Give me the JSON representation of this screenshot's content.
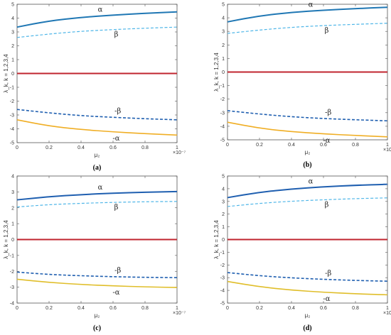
{
  "figure": {
    "x_exponent": "×10⁻⁷",
    "xlabel": "μ₂",
    "ylabel": "λ_k, k = 1,2,3,4"
  },
  "chart_data": [
    {
      "type": "line",
      "caption": "(a)",
      "xlim": [
        0,
        1
      ],
      "ylim": [
        -5,
        5
      ],
      "xticks": [
        "0",
        "0.2",
        "0.4",
        "0.6",
        "0.8",
        "1"
      ],
      "yticks": [
        "-5",
        "-4",
        "-3",
        "-2",
        "-1",
        "0",
        "1",
        "2",
        "3",
        "4",
        "5"
      ],
      "series": [
        {
          "name": "α",
          "color": "#1f77b4",
          "style": "solid",
          "width": 2.0,
          "x": [
            0,
            0.2,
            0.4,
            0.6,
            0.8,
            1.0
          ],
          "y": [
            3.35,
            3.8,
            4.05,
            4.22,
            4.35,
            4.45
          ]
        },
        {
          "name": "β",
          "color": "#4fb6e8",
          "style": "dashed",
          "width": 1.2,
          "x": [
            0,
            0.2,
            0.4,
            0.6,
            0.8,
            1.0
          ],
          "y": [
            2.6,
            2.85,
            3.05,
            3.17,
            3.27,
            3.35
          ]
        },
        {
          "name": "",
          "color": "#c0252f",
          "style": "solid",
          "width": 2.0,
          "x": [
            0,
            1.0
          ],
          "y": [
            0,
            0
          ]
        },
        {
          "name": "-β",
          "color": "#1f5fb0",
          "style": "dashed",
          "width": 1.6,
          "x": [
            0,
            0.2,
            0.4,
            0.6,
            0.8,
            1.0
          ],
          "y": [
            -2.6,
            -2.85,
            -3.05,
            -3.17,
            -3.27,
            -3.35
          ]
        },
        {
          "name": "-α",
          "color": "#f0ae24",
          "style": "solid",
          "width": 1.6,
          "x": [
            0,
            0.2,
            0.4,
            0.6,
            0.8,
            1.0
          ],
          "y": [
            -3.35,
            -3.8,
            -4.05,
            -4.22,
            -4.35,
            -4.45
          ]
        }
      ]
    },
    {
      "type": "line",
      "caption": "(b)",
      "xlim": [
        0,
        1
      ],
      "ylim": [
        -5,
        5
      ],
      "xticks": [
        "0",
        "0.2",
        "0.4",
        "0.6",
        "0.8",
        "1"
      ],
      "yticks": [
        "-5",
        "-4",
        "-3",
        "-2",
        "-1",
        "0",
        "1",
        "2",
        "3",
        "4",
        "5"
      ],
      "series": [
        {
          "name": "α",
          "color": "#1f77b4",
          "style": "solid",
          "width": 2.0,
          "x": [
            0,
            0.2,
            0.4,
            0.6,
            0.8,
            1.0
          ],
          "y": [
            3.7,
            4.15,
            4.4,
            4.56,
            4.68,
            4.78
          ]
        },
        {
          "name": "β",
          "color": "#4fb6e8",
          "style": "dashed",
          "width": 1.2,
          "x": [
            0,
            0.2,
            0.4,
            0.6,
            0.8,
            1.0
          ],
          "y": [
            2.85,
            3.1,
            3.3,
            3.43,
            3.52,
            3.6
          ]
        },
        {
          "name": "",
          "color": "#c0252f",
          "style": "solid",
          "width": 2.0,
          "x": [
            0,
            1.0
          ],
          "y": [
            0,
            0
          ]
        },
        {
          "name": "-β",
          "color": "#1f5fb0",
          "style": "dashed",
          "width": 1.6,
          "x": [
            0,
            0.2,
            0.4,
            0.6,
            0.8,
            1.0
          ],
          "y": [
            -2.85,
            -3.1,
            -3.3,
            -3.43,
            -3.52,
            -3.6
          ]
        },
        {
          "name": "-α",
          "color": "#f0ae24",
          "style": "solid",
          "width": 1.6,
          "x": [
            0,
            0.2,
            0.4,
            0.6,
            0.8,
            1.0
          ],
          "y": [
            -3.7,
            -4.15,
            -4.4,
            -4.56,
            -4.68,
            -4.78
          ]
        }
      ]
    },
    {
      "type": "line",
      "caption": "(c)",
      "xlim": [
        0,
        1
      ],
      "ylim": [
        -4,
        4
      ],
      "xticks": [
        "0",
        "0.2",
        "0.4",
        "0.6",
        "0.8",
        "1"
      ],
      "yticks": [
        "-4",
        "-3",
        "-2",
        "-1",
        "0",
        "1",
        "2",
        "3",
        "4"
      ],
      "series": [
        {
          "name": "α",
          "color": "#1f5fb0",
          "style": "solid",
          "width": 2.0,
          "x": [
            0,
            0.2,
            0.4,
            0.6,
            0.8,
            1.0
          ],
          "y": [
            2.5,
            2.7,
            2.83,
            2.92,
            2.98,
            3.02
          ]
        },
        {
          "name": "β",
          "color": "#4fb6e8",
          "style": "dashed",
          "width": 1.2,
          "x": [
            0,
            0.2,
            0.4,
            0.6,
            0.8,
            1.0
          ],
          "y": [
            2.05,
            2.2,
            2.28,
            2.34,
            2.38,
            2.4
          ]
        },
        {
          "name": "",
          "color": "#c0252f",
          "style": "solid",
          "width": 2.0,
          "x": [
            0,
            1.0
          ],
          "y": [
            0,
            0
          ]
        },
        {
          "name": "-β",
          "color": "#1f5fb0",
          "style": "dashed",
          "width": 1.6,
          "x": [
            0,
            0.2,
            0.4,
            0.6,
            0.8,
            1.0
          ],
          "y": [
            -2.05,
            -2.2,
            -2.28,
            -2.34,
            -2.38,
            -2.4
          ]
        },
        {
          "name": "-α",
          "color": "#e0be2a",
          "style": "solid",
          "width": 1.6,
          "x": [
            0,
            0.2,
            0.4,
            0.6,
            0.8,
            1.0
          ],
          "y": [
            -2.5,
            -2.7,
            -2.83,
            -2.92,
            -2.98,
            -3.02
          ]
        }
      ]
    },
    {
      "type": "line",
      "caption": "(d)",
      "xlim": [
        0,
        1
      ],
      "ylim": [
        -5,
        5
      ],
      "xticks": [
        "0",
        "0.2",
        "0.4",
        "0.6",
        "0.8",
        "1"
      ],
      "yticks": [
        "-5",
        "-4",
        "-3",
        "-2",
        "-1",
        "0",
        "1",
        "2",
        "3",
        "4",
        "5"
      ],
      "series": [
        {
          "name": "α",
          "color": "#1f5fb0",
          "style": "solid",
          "width": 2.0,
          "x": [
            0,
            0.2,
            0.4,
            0.6,
            0.8,
            1.0
          ],
          "y": [
            3.3,
            3.72,
            3.98,
            4.15,
            4.27,
            4.35
          ]
        },
        {
          "name": "β",
          "color": "#4fb6e8",
          "style": "dashed",
          "width": 1.2,
          "x": [
            0,
            0.2,
            0.4,
            0.6,
            0.8,
            1.0
          ],
          "y": [
            2.6,
            2.85,
            3.02,
            3.13,
            3.22,
            3.28
          ]
        },
        {
          "name": "",
          "color": "#c0252f",
          "style": "solid",
          "width": 2.0,
          "x": [
            0,
            1.0
          ],
          "y": [
            0,
            0
          ]
        },
        {
          "name": "-β",
          "color": "#1f5fb0",
          "style": "dashed",
          "width": 1.6,
          "x": [
            0,
            0.2,
            0.4,
            0.6,
            0.8,
            1.0
          ],
          "y": [
            -2.6,
            -2.85,
            -3.02,
            -3.13,
            -3.22,
            -3.28
          ]
        },
        {
          "name": "-α",
          "color": "#e0be2a",
          "style": "solid",
          "width": 1.6,
          "x": [
            0,
            0.2,
            0.4,
            0.6,
            0.8,
            1.0
          ],
          "y": [
            -3.3,
            -3.72,
            -3.98,
            -4.15,
            -4.27,
            -4.35
          ]
        }
      ]
    }
  ]
}
